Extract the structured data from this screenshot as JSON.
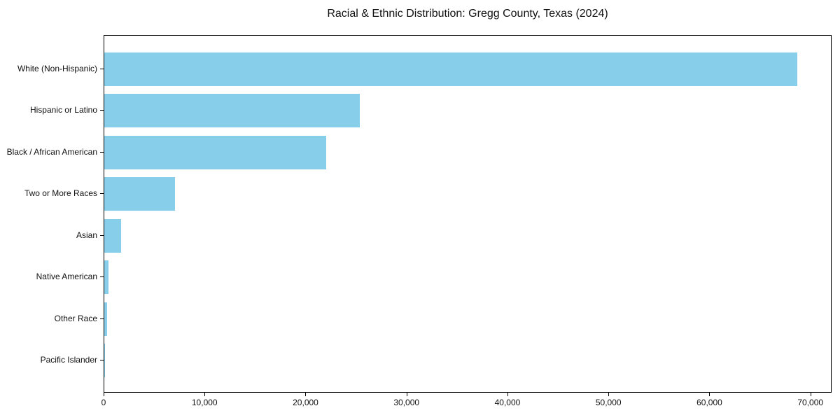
{
  "chart_data": {
    "type": "bar",
    "orientation": "horizontal",
    "title": "Racial & Ethnic Distribution: Gregg County, Texas (2024)",
    "categories": [
      "White (Non-Hispanic)",
      "Hispanic or Latino",
      "Black / African American",
      "Two or More Races",
      "Asian",
      "Native American",
      "Other Race",
      "Pacific Islander"
    ],
    "values": [
      68600,
      25300,
      22000,
      7000,
      1650,
      450,
      250,
      40
    ],
    "xlabel": "",
    "ylabel": "",
    "xlim": [
      0,
      72100
    ],
    "x_ticks": [
      0,
      10000,
      20000,
      30000,
      40000,
      50000,
      60000,
      70000
    ],
    "x_tick_labels": [
      "0",
      "10,000",
      "20,000",
      "30,000",
      "40,000",
      "50,000",
      "60,000",
      "70,000"
    ],
    "bar_color": "#87CEEB",
    "axis_color": "#000000",
    "text_color": "#111111",
    "background": "#ffffff",
    "grid": false,
    "legend": false
  }
}
